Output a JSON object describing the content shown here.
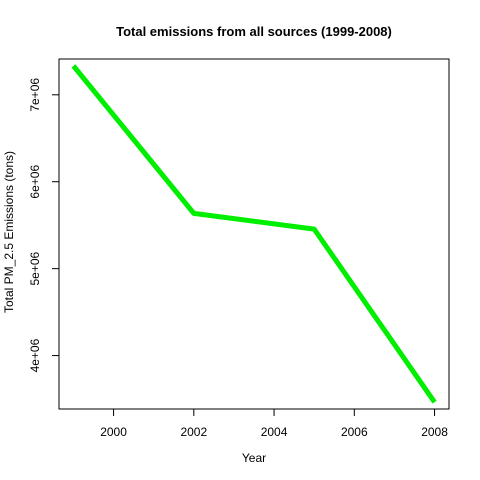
{
  "chart_data": {
    "type": "line",
    "title": "Total emissions from all sources (1999-2008)",
    "xlabel": "Year",
    "ylabel": "Total PM_2.5 Emissions (tons)",
    "x": [
      1999,
      2002,
      2005,
      2008
    ],
    "series": [
      {
        "values": [
          7332967,
          5635780,
          5454703,
          3464206
        ]
      }
    ],
    "xlim": [
      1998.64,
      2008.36
    ],
    "ylim": [
      3385295,
      7411878
    ],
    "x_ticks": [
      2000,
      2002,
      2004,
      2006,
      2008
    ],
    "x_tick_labels": [
      "2000",
      "2002",
      "2004",
      "2006",
      "2008"
    ],
    "y_ticks": [
      4000000,
      5000000,
      6000000,
      7000000
    ],
    "y_tick_labels": [
      "4e+06",
      "5e+06",
      "6e+06",
      "7e+06"
    ],
    "grid": false,
    "colors": {
      "line": "#00ee00",
      "axis": "#000000"
    }
  }
}
